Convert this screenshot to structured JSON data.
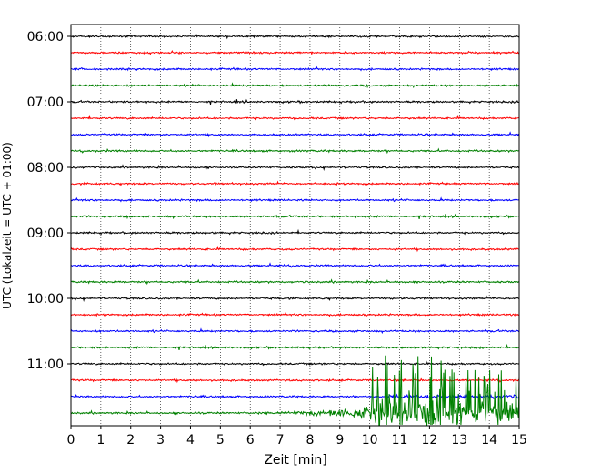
{
  "chart_data": {
    "type": "line",
    "subtype": "helicorder (seismogram drum plot)",
    "title": "",
    "xlabel": "Zeit  [min]",
    "ylabel": "UTC (Lokalzeit = UTC + 01:00)",
    "xlim": [
      0,
      15
    ],
    "x_ticks": [
      "0",
      "1",
      "2",
      "3",
      "4",
      "5",
      "6",
      "7",
      "8",
      "9",
      "10",
      "11",
      "12",
      "13",
      "14",
      "15"
    ],
    "y_ticks": [
      "06:00",
      "07:00",
      "08:00",
      "09:00",
      "10:00",
      "11:00"
    ],
    "grid": "vertical dotted lines at each minute",
    "trace_colors": [
      "#000000",
      "#ff0000",
      "#0000ff",
      "#008000"
    ],
    "traces": [
      {
        "start": "06:00",
        "color": "#000000",
        "amplitude": "low"
      },
      {
        "start": "06:15",
        "color": "#ff0000",
        "amplitude": "low"
      },
      {
        "start": "06:30",
        "color": "#0000ff",
        "amplitude": "low"
      },
      {
        "start": "06:45",
        "color": "#008000",
        "amplitude": "low"
      },
      {
        "start": "07:00",
        "color": "#000000",
        "amplitude": "low"
      },
      {
        "start": "07:15",
        "color": "#ff0000",
        "amplitude": "low"
      },
      {
        "start": "07:30",
        "color": "#0000ff",
        "amplitude": "low"
      },
      {
        "start": "07:45",
        "color": "#008000",
        "amplitude": "low"
      },
      {
        "start": "08:00",
        "color": "#000000",
        "amplitude": "low"
      },
      {
        "start": "08:15",
        "color": "#ff0000",
        "amplitude": "low"
      },
      {
        "start": "08:30",
        "color": "#0000ff",
        "amplitude": "low"
      },
      {
        "start": "08:45",
        "color": "#008000",
        "amplitude": "low"
      },
      {
        "start": "09:00",
        "color": "#000000",
        "amplitude": "low"
      },
      {
        "start": "09:15",
        "color": "#ff0000",
        "amplitude": "low"
      },
      {
        "start": "09:30",
        "color": "#0000ff",
        "amplitude": "low"
      },
      {
        "start": "09:45",
        "color": "#008000",
        "amplitude": "low"
      },
      {
        "start": "10:00",
        "color": "#000000",
        "amplitude": "low"
      },
      {
        "start": "10:15",
        "color": "#ff0000",
        "amplitude": "low"
      },
      {
        "start": "10:30",
        "color": "#0000ff",
        "amplitude": "low"
      },
      {
        "start": "10:45",
        "color": "#008000",
        "amplitude": "low"
      },
      {
        "start": "11:00",
        "color": "#000000",
        "amplitude": "low"
      },
      {
        "start": "11:15",
        "color": "#ff0000",
        "amplitude": "low"
      },
      {
        "start": "11:30",
        "color": "#0000ff",
        "amplitude": "low",
        "note": "small wiggles from ~10.5 min"
      },
      {
        "start": "11:45",
        "color": "#008000",
        "amplitude": "event",
        "event_onset_min": 6.2,
        "event_strong_min": 10.0,
        "event_end_min": 15
      }
    ]
  }
}
